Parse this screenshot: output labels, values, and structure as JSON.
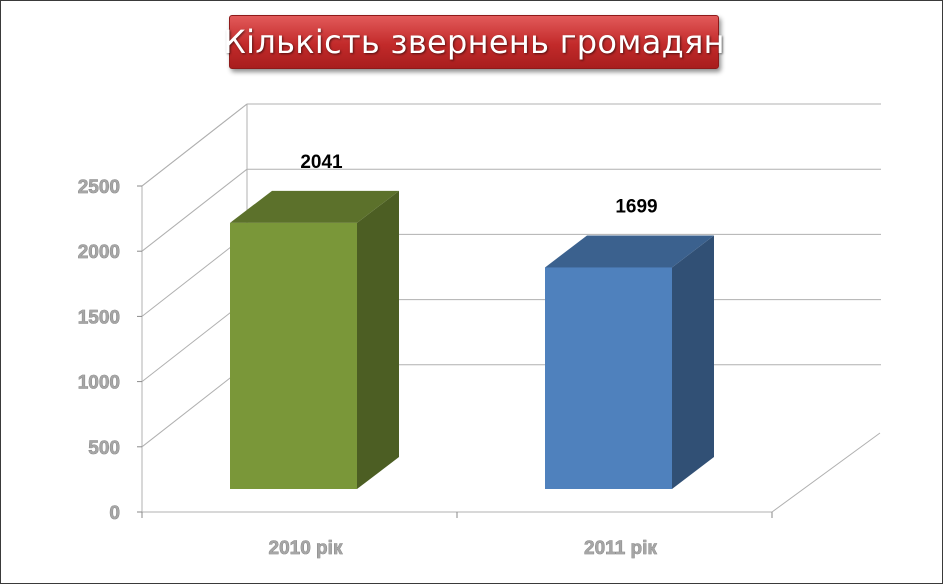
{
  "chart_data": {
    "type": "bar",
    "title": "Кількість звернень громадян",
    "categories": [
      "2010 рік",
      "2011 рік"
    ],
    "values": [
      2041,
      1699
    ],
    "data_labels": [
      "2041",
      "1699"
    ],
    "y_ticks": [
      "0",
      "500",
      "1000",
      "1500",
      "2000",
      "2500"
    ],
    "ylim": [
      0,
      2500
    ],
    "grid": true,
    "three_d": true,
    "colors": {
      "2010 рік": "#7a9739",
      "2011 рік": "#4f81bd",
      "title_background": "#c0392b",
      "title_text": "#ffffff"
    }
  }
}
